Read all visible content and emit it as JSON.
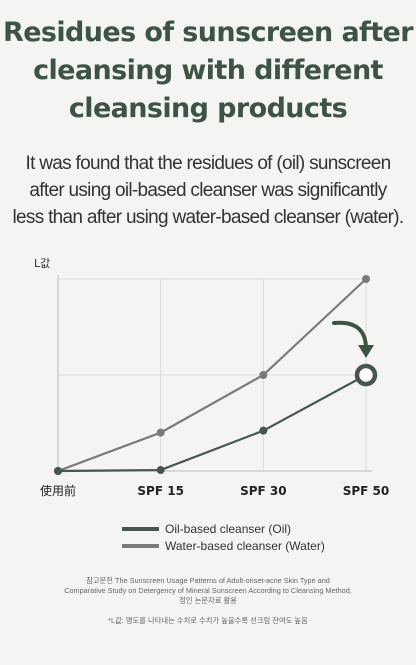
{
  "title": {
    "line1": "Residues of sunscreen after",
    "line2": "cleansing with different",
    "line3": "cleansing products"
  },
  "description": {
    "line1": "It was found that the residues of (oil) sunscreen",
    "line2": "after using oil-based cleanser was significantly",
    "line3": "less than after using water-based cleanser (water)."
  },
  "chart_data": {
    "type": "line",
    "ylabel": "L값",
    "categories": [
      "使用前",
      "SPF 15",
      "SPF 30",
      "SPF 50"
    ],
    "ylim": [
      0,
      100
    ],
    "grid": true,
    "legend_position": "bottom",
    "series": [
      {
        "name": "Oil-based cleanser (Oil)",
        "color": "#46564c",
        "values": [
          0,
          0.5,
          21,
          50
        ]
      },
      {
        "name": "Water-based cleanser (Water)",
        "color": "#7a7a7a",
        "values": [
          0,
          20,
          50,
          100
        ]
      }
    ],
    "annotations": [
      {
        "type": "arrow-icon",
        "target_series": "Oil-based cleanser (Oil)",
        "target_category": "SPF 50",
        "color": "#3d5346"
      }
    ]
  },
  "footnote": {
    "line1": "참고문헌 The Sunscreen Usage Patterns of Adult-onset-acne Skin Type and",
    "line2": "Comparative Study on Detergency of Mineral Sunscreen According to Cleansing Method,",
    "line3": "정인 논문자료 활용"
  },
  "note": "*L값: 명도를 나타내는 수치로 수치가 높을수록 선크림 잔여도 높음"
}
